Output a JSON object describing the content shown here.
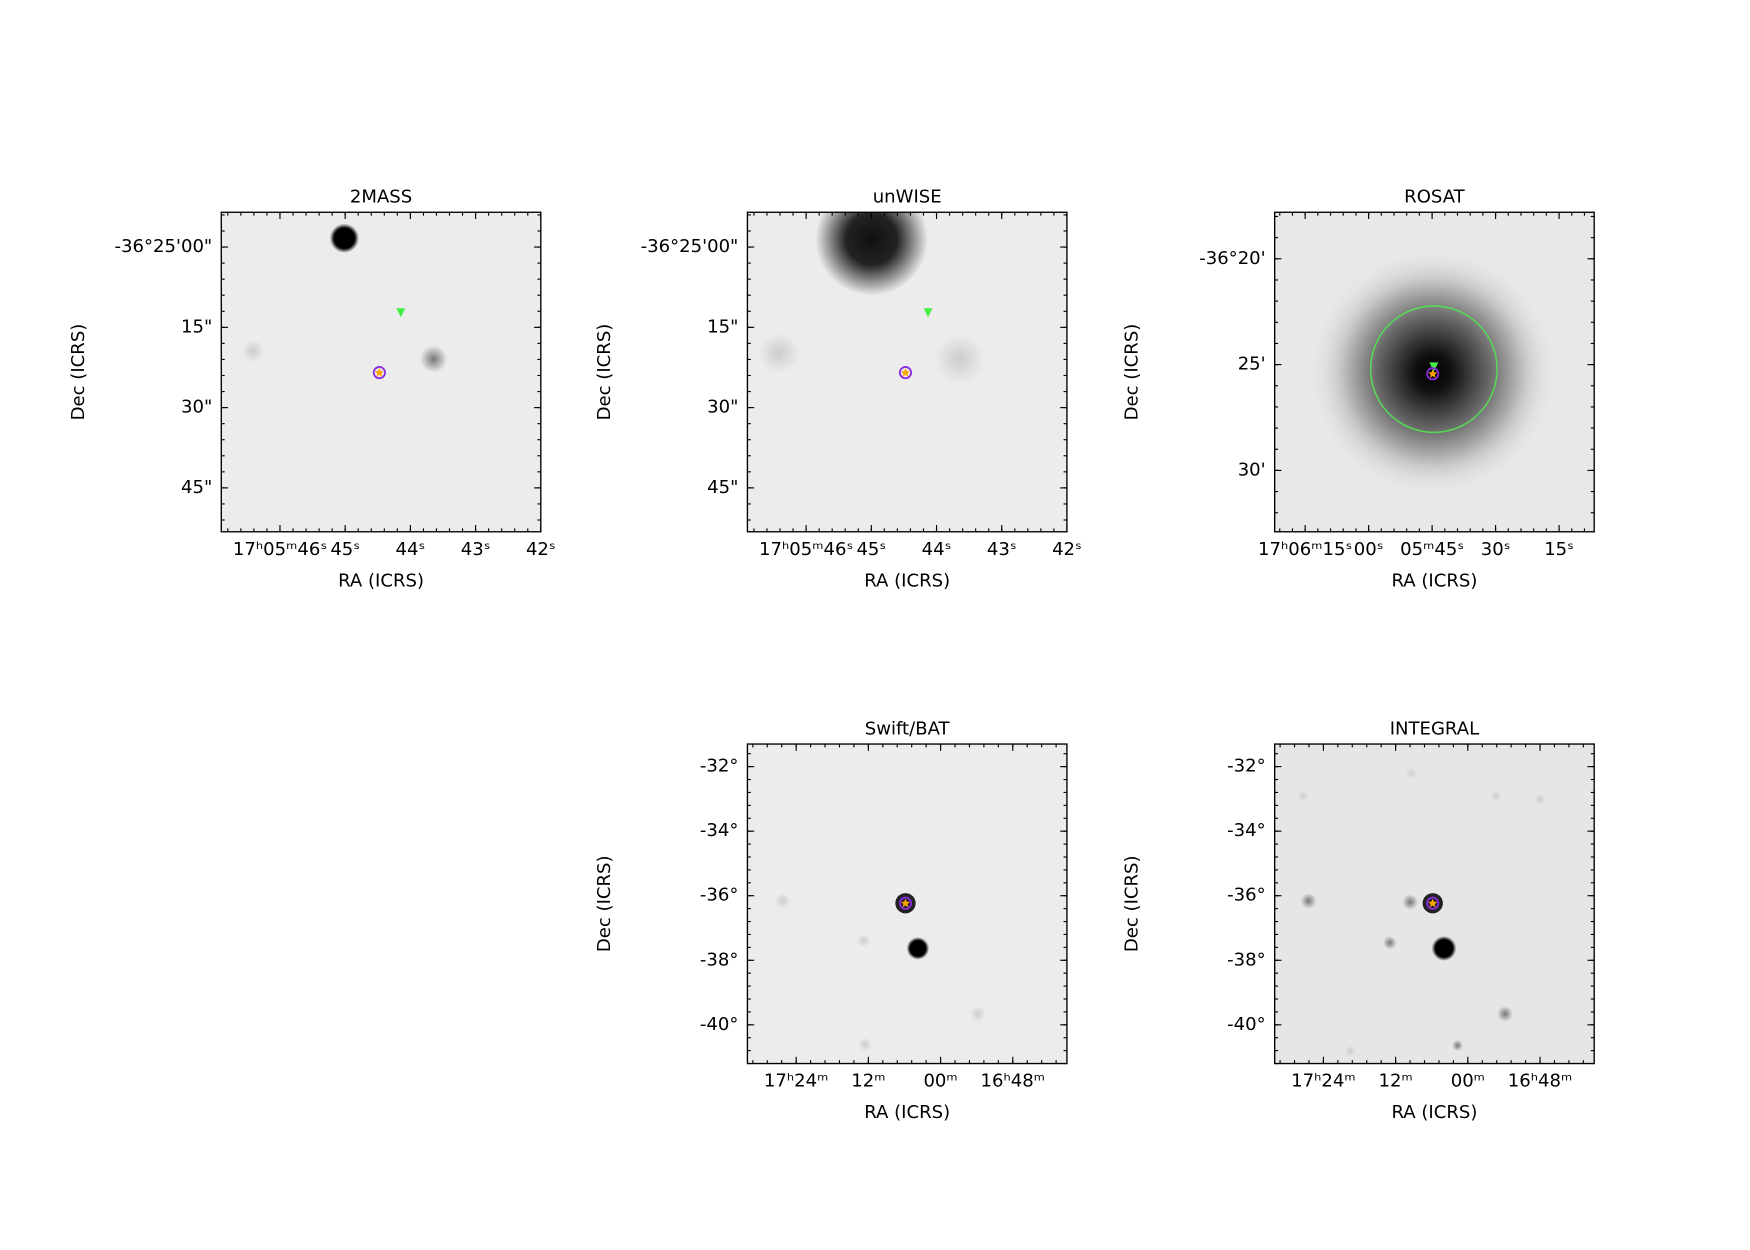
{
  "chart_data": [
    {
      "type": "image",
      "title": "2MASS",
      "xlabel": "RA (ICRS)",
      "ylabel": "Dec (ICRS)",
      "xlim": [
        46.9,
        42.0
      ],
      "ylim": [
        53.2,
        -6.5
      ],
      "xticks": [
        {
          "value": 46,
          "label": "17ʰ05ᵐ46ˢ"
        },
        {
          "value": 45,
          "label": "45ˢ"
        },
        {
          "value": 44,
          "label": "44ˢ"
        },
        {
          "value": 43,
          "label": "43ˢ"
        },
        {
          "value": 42,
          "label": "42ˢ"
        }
      ],
      "yticks": [
        {
          "value": 0,
          "label": "-36°25'00\""
        },
        {
          "value": 15,
          "label": "15\""
        },
        {
          "value": 30,
          "label": "30\""
        },
        {
          "value": 45,
          "label": "45\""
        }
      ]
    },
    {
      "type": "image",
      "title": "unWISE",
      "xlabel": "RA (ICRS)",
      "ylabel": "Dec (ICRS)",
      "xlim": [
        46.9,
        42.0
      ],
      "ylim": [
        53.2,
        -6.5
      ],
      "xticks": [
        {
          "value": 46,
          "label": "17ʰ05ᵐ46ˢ"
        },
        {
          "value": 45,
          "label": "45ˢ"
        },
        {
          "value": 44,
          "label": "44ˢ"
        },
        {
          "value": 43,
          "label": "43ˢ"
        },
        {
          "value": 42,
          "label": "42ˢ"
        }
      ],
      "yticks": [
        {
          "value": 0,
          "label": "-36°25'00\""
        },
        {
          "value": 15,
          "label": "15\""
        },
        {
          "value": 30,
          "label": "30\""
        },
        {
          "value": 45,
          "label": "45\""
        }
      ]
    },
    {
      "type": "image",
      "title": "ROSAT",
      "xlabel": "RA (ICRS)",
      "ylabel": "Dec (ICRS)",
      "xlim": [
        82.2,
        6.7
      ],
      "ylim": [
        32.9,
        17.8
      ],
      "xticks": [
        {
          "value": 75,
          "label": "17ʰ06ᵐ15ˢ"
        },
        {
          "value": 60,
          "label": "00ˢ"
        },
        {
          "value": 45,
          "label": "05ᵐ45ˢ"
        },
        {
          "value": 30,
          "label": "30ˢ"
        },
        {
          "value": 15,
          "label": "15ˢ"
        }
      ],
      "yticks": [
        {
          "value": 20,
          "label": "-36°20'"
        },
        {
          "value": 25,
          "label": "25'"
        },
        {
          "value": 30,
          "label": "30'"
        }
      ]
    },
    {
      "type": "image",
      "title": "Swift/BAT",
      "xlabel": "RA (ICRS)",
      "ylabel": "Dec (ICRS)",
      "xlim": [
        92.1,
        39.0
      ],
      "ylim": [
        -41.2,
        -31.3
      ],
      "xticks": [
        {
          "value": 84,
          "label": "17ʰ24ᵐ"
        },
        {
          "value": 72,
          "label": "12ᵐ"
        },
        {
          "value": 60,
          "label": "00ᵐ"
        },
        {
          "value": 48,
          "label": "16ʰ48ᵐ"
        }
      ],
      "yticks": [
        {
          "value": -32,
          "label": "-32°"
        },
        {
          "value": -34,
          "label": "-34°"
        },
        {
          "value": -36,
          "label": "-36°"
        },
        {
          "value": -38,
          "label": "-38°"
        },
        {
          "value": -40,
          "label": "-40°"
        }
      ]
    },
    {
      "type": "image",
      "title": "INTEGRAL",
      "xlabel": "RA (ICRS)",
      "ylabel": "Dec (ICRS)",
      "xlim": [
        92.1,
        39.0
      ],
      "ylim": [
        -41.2,
        -31.3
      ],
      "xticks": [
        {
          "value": 84,
          "label": "17ʰ24ᵐ"
        },
        {
          "value": 72,
          "label": "12ᵐ"
        },
        {
          "value": 60,
          "label": "00ᵐ"
        },
        {
          "value": 48,
          "label": "16ʰ48ᵐ"
        }
      ],
      "yticks": [
        {
          "value": -32,
          "label": "-32°"
        },
        {
          "value": -34,
          "label": "-34°"
        },
        {
          "value": -36,
          "label": "-36°"
        },
        {
          "value": -38,
          "label": "-38°"
        },
        {
          "value": -40,
          "label": "-40°"
        }
      ]
    }
  ]
}
